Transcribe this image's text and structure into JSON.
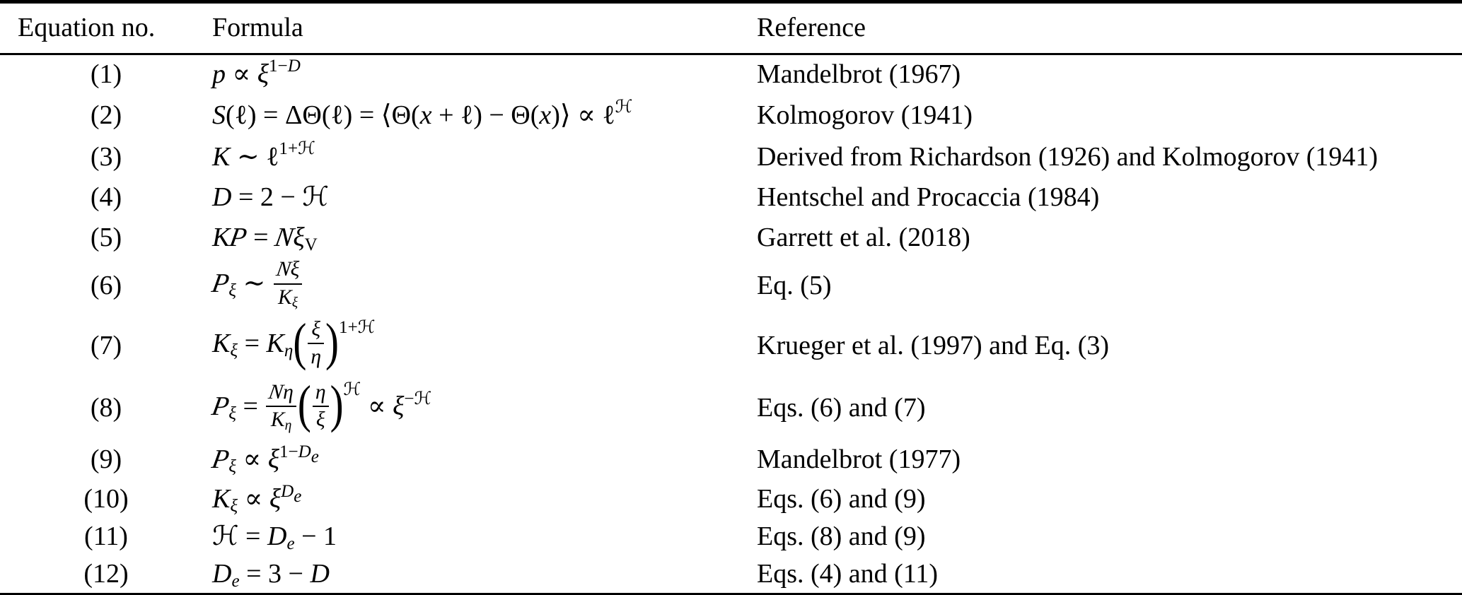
{
  "table": {
    "headers": {
      "equation_no": "Equation no.",
      "formula": "Formula",
      "reference": "Reference"
    },
    "rows": [
      {
        "no": "(1)",
        "formula_text": "p ∝ ξ^(1−D)",
        "formula_html": "<i>p</i> ∝ <i>ξ</i><sup>1−<i>D</i></sup>",
        "reference": "Mandelbrot (1967)"
      },
      {
        "no": "(2)",
        "formula_text": "S(ℓ) = ΔΘ(ℓ) = ⟨Θ(x + ℓ) − Θ(x)⟩ ∝ ℓ^ℋ",
        "formula_html": "<i>S</i>(ℓ) = ΔΘ(ℓ) = ⟨Θ(<i>x</i> + ℓ) − Θ(<i>x</i>)⟩ ∝ ℓ<sup>ℋ</sup>",
        "reference": "Kolmogorov (1941)"
      },
      {
        "no": "(3)",
        "formula_text": "K ∼ ℓ^(1+ℋ)",
        "formula_html": "<i>K</i> ∼ ℓ<sup>1+ℋ</sup>",
        "reference": "Derived from Richardson (1926) and Kolmogorov (1941)"
      },
      {
        "no": "(4)",
        "formula_text": "D = 2 − ℋ",
        "formula_html": "<i>D</i> = 2 − ℋ",
        "reference": "Hentschel and Procaccia (1984)"
      },
      {
        "no": "(5)",
        "formula_text": "K𝒫 = 𝒩ξ_V",
        "formula_html": "<i>K</i><span class='cal'>P</span> = <span class='cal'>N</span><i>ξ</i><sub>V</sub>",
        "reference": "Garrett et al. (2018)"
      },
      {
        "no": "(6)",
        "formula_text": "𝒫_ξ ∼ 𝒩ξ / K_ξ",
        "formula_html": "<span class='cal'>P</span><sub><i>ξ</i></sub> ∼ <span class='frac'><span class='fnum'><span class='cal'>N</span><i>ξ</i></span><span class='fden'><i>K</i><sub><i>ξ</i></sub></span></span>",
        "reference": "Eq. (5)"
      },
      {
        "no": "(7)",
        "formula_text": "K_ξ = K_η (ξ/η)^(1+ℋ)",
        "formula_html": "<i>K</i><sub><i>ξ</i></sub> = <i>K</i><sub><i>η</i></sub><span class='bp'>(</span><span class='frac'><span class='fnum'><i>ξ</i></span><span class='fden'><i>η</i></span></span><span class='bp'>)</span><sup class='bsup'>1+ℋ</sup>",
        "reference": "Krueger et al. (1997) and Eq. (3)"
      },
      {
        "no": "(8)",
        "formula_text": "𝒫_ξ = (𝒩η / K_η)(η/ξ)^ℋ ∝ ξ^(−ℋ)",
        "formula_html": "<span class='cal'>P</span><sub><i>ξ</i></sub> = <span class='frac'><span class='fnum'><span class='cal'>N</span><i>η</i></span><span class='fden'><i>K</i><sub><i>η</i></sub></span></span><span class='bp'>(</span><span class='frac'><span class='fnum'><i>η</i></span><span class='fden'><i>ξ</i></span></span><span class='bp'>)</span><sup class='bsup'>ℋ</sup> ∝ <i>ξ</i><sup>−ℋ</sup>",
        "reference": "Eqs. (6) and (7)"
      },
      {
        "no": "(9)",
        "formula_text": "𝒫_ξ ∝ ξ^(1−D_e)",
        "formula_html": "<span class='cal'>P</span><sub><i>ξ</i></sub> ∝ <i>ξ</i><sup>1−<i>D</i><sub><i>e</i></sub></sup>",
        "reference": "Mandelbrot (1977)"
      },
      {
        "no": "(10)",
        "formula_text": "K_ξ ∝ ξ^(D_e)",
        "formula_html": "<i>K</i><sub><i>ξ</i></sub> ∝ <i>ξ</i><sup><i>D</i><sub><i>e</i></sub></sup>",
        "reference": "Eqs. (6) and (9)"
      },
      {
        "no": "(11)",
        "formula_text": "ℋ = D_e − 1",
        "formula_html": "ℋ = <i>D</i><sub><i>e</i></sub> − 1",
        "reference": "Eqs. (8) and (9)"
      },
      {
        "no": "(12)",
        "formula_text": "D_e = 3 − D",
        "formula_html": "<i>D</i><sub><i>e</i></sub> = 3 − <i>D</i>",
        "reference": "Eqs. (4) and (11)"
      }
    ]
  },
  "colors": {
    "background": "#ffffff",
    "text": "#000000",
    "rule": "#000000"
  }
}
